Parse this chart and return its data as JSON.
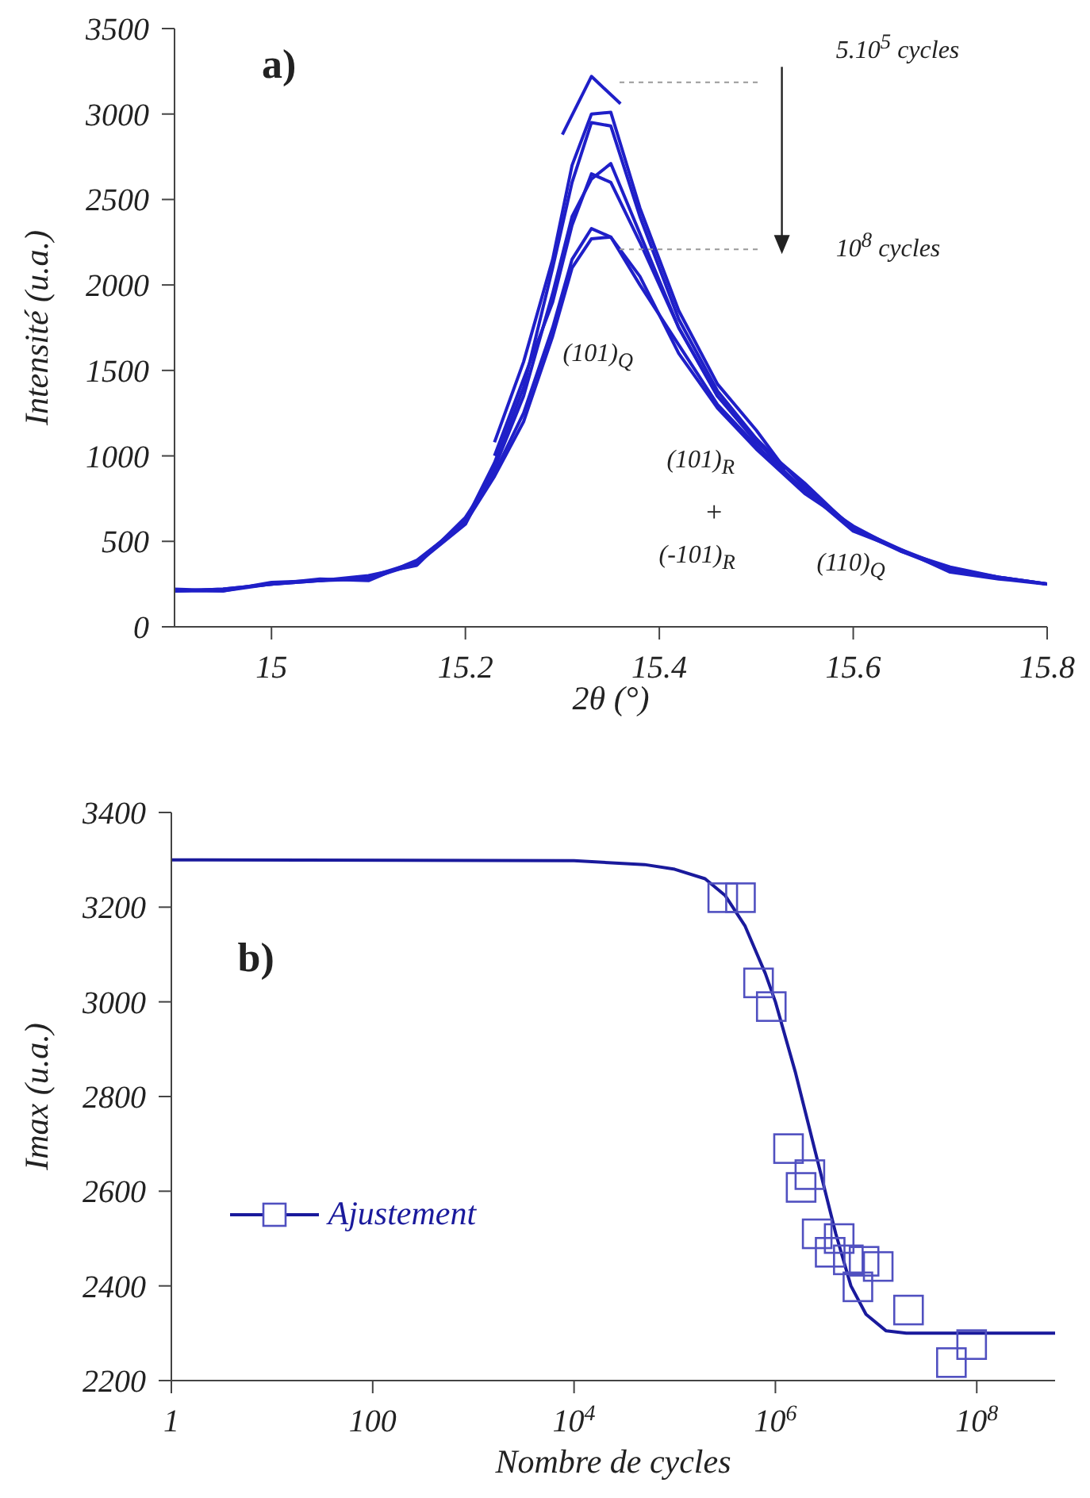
{
  "chart_data": [
    {
      "type": "line",
      "xlabel": "2θ (°)",
      "ylabel": "Intensité (u.a.)",
      "xlim": [
        14.9,
        15.8
      ],
      "xticks": [
        15,
        15.2,
        15.4,
        15.6,
        15.8
      ],
      "ylim": [
        0,
        3500
      ],
      "yticks": [
        0,
        500,
        1000,
        1500,
        2000,
        2500,
        3000,
        3500
      ],
      "grid": false,
      "legend": false,
      "marker": "none",
      "line_style": "solid",
      "annotations": [
        "a)",
        "5.10$^{5}$ cycles",
        "10$^{8}$ cycles",
        "(101)$_{Q}$",
        "(101)$_{R}$",
        "+",
        "(-101)$_{R}$",
        "(110)$_{Q}$"
      ],
      "series": [
        {
          "color": "#1f1fc8",
          "x": [
            15.3,
            15.33,
            15.36
          ],
          "values": [
            2880,
            3220,
            3060
          ]
        },
        {
          "color": "#1f1fc8",
          "x": [
            15.23,
            15.26,
            15.29,
            15.31,
            15.33,
            15.35,
            15.38,
            15.42,
            15.46,
            15.5,
            15.53
          ],
          "values": [
            1080,
            1550,
            2150,
            2700,
            3000,
            3010,
            2450,
            1850,
            1420,
            1150,
            920
          ]
        },
        {
          "color": "#1f1fc8",
          "x": [
            15.23,
            15.26,
            15.29,
            15.31,
            15.33,
            15.35,
            15.38,
            15.42,
            15.46,
            15.5,
            15.53
          ],
          "values": [
            1000,
            1450,
            1900,
            2350,
            2650,
            2600,
            2250,
            1750,
            1350,
            1100,
            900
          ]
        },
        {
          "color": "#1f1fc8",
          "x": [
            14.9,
            14.95,
            15.0,
            15.05,
            15.1,
            15.15,
            15.2,
            15.23,
            15.26,
            15.29,
            15.31,
            15.33,
            15.35,
            15.38,
            15.42,
            15.46,
            15.5,
            15.55,
            15.6,
            15.65,
            15.7,
            15.75,
            15.8
          ],
          "values": [
            210,
            220,
            250,
            270,
            290,
            380,
            620,
            960,
            1400,
            2100,
            2600,
            2950,
            2930,
            2400,
            1800,
            1380,
            1100,
            820,
            580,
            450,
            340,
            290,
            250
          ]
        },
        {
          "color": "#1f1fc8",
          "x": [
            14.9,
            14.95,
            15.0,
            15.05,
            15.1,
            15.15,
            15.2,
            15.23,
            15.26,
            15.29,
            15.31,
            15.33,
            15.35,
            15.38,
            15.42,
            15.46,
            15.5,
            15.55,
            15.6,
            15.65,
            15.7,
            15.75,
            15.8
          ],
          "values": [
            210,
            210,
            260,
            270,
            280,
            370,
            600,
            930,
            1350,
            1950,
            2400,
            2620,
            2710,
            2300,
            1750,
            1350,
            1080,
            840,
            570,
            440,
            330,
            290,
            250
          ]
        },
        {
          "color": "#1f1fc8",
          "x": [
            14.9,
            14.95,
            15.0,
            15.05,
            15.1,
            15.15,
            15.2,
            15.23,
            15.26,
            15.29,
            15.31,
            15.33,
            15.35,
            15.38,
            15.42,
            15.46,
            15.5,
            15.55,
            15.6,
            15.65,
            15.7,
            15.75,
            15.8
          ],
          "values": [
            220,
            210,
            250,
            270,
            300,
            360,
            640,
            900,
            1250,
            1750,
            2150,
            2330,
            2280,
            2000,
            1650,
            1300,
            1060,
            800,
            560,
            450,
            320,
            280,
            250
          ]
        },
        {
          "color": "#1f1fc8",
          "x": [
            14.9,
            14.95,
            15.0,
            15.05,
            15.1,
            15.15,
            15.2,
            15.23,
            15.26,
            15.29,
            15.31,
            15.33,
            15.35,
            15.38,
            15.42,
            15.46,
            15.5,
            15.55,
            15.6,
            15.65,
            15.7,
            15.75,
            15.8
          ],
          "values": [
            210,
            220,
            250,
            280,
            270,
            390,
            610,
            880,
            1200,
            1700,
            2100,
            2270,
            2280,
            2050,
            1600,
            1280,
            1040,
            780,
            590,
            440,
            350,
            290,
            250
          ]
        }
      ]
    },
    {
      "type": "scatter",
      "xlabel": "Nombre de cycles",
      "ylabel": "Imax (u.a.)",
      "log": "x",
      "xlim": [
        1,
        600000000
      ],
      "xticks": [
        1,
        100,
        {
          "value": 10000,
          "label": "10$^{4}$"
        },
        {
          "value": 1000000,
          "label": "10$^{6}$"
        },
        {
          "value": 100000000,
          "label": "10$^{8}$"
        }
      ],
      "ylim": [
        2200,
        3400
      ],
      "yticks": [
        2200,
        2400,
        2600,
        2800,
        3000,
        3200,
        3400
      ],
      "grid": false,
      "legend": "left",
      "annotations": [
        "b)"
      ],
      "series": [
        {
          "type": "scatter",
          "marker": "square",
          "color": "#5050c0",
          "x": [
            300000,
            450000,
            680000,
            910000,
            1350000,
            2200000,
            1800000,
            2600000,
            4300000,
            3500000,
            5300000,
            7600000,
            10500000,
            6600000,
            21000000,
            56000000,
            89000000
          ],
          "values": [
            3220,
            3220,
            3040,
            2990,
            2690,
            2635,
            2608,
            2510,
            2500,
            2471,
            2455,
            2452,
            2441,
            2398,
            2349,
            2238,
            2276
          ]
        },
        {
          "type": "line",
          "name": "Ajustement",
          "marker": "none",
          "color": "#1a1a9c",
          "x": [
            1,
            10000,
            50000,
            100000,
            200000,
            316000,
            500000,
            794000,
            1000000,
            1585000,
            2512000,
            3981000,
            5623000,
            7943000,
            12590000,
            19950000,
            600000000
          ],
          "values": [
            3300,
            3298,
            3290,
            3280,
            3260,
            3225,
            3160,
            3060,
            3000,
            2850,
            2680,
            2510,
            2400,
            2340,
            2305,
            2300,
            2300
          ]
        }
      ]
    }
  ]
}
